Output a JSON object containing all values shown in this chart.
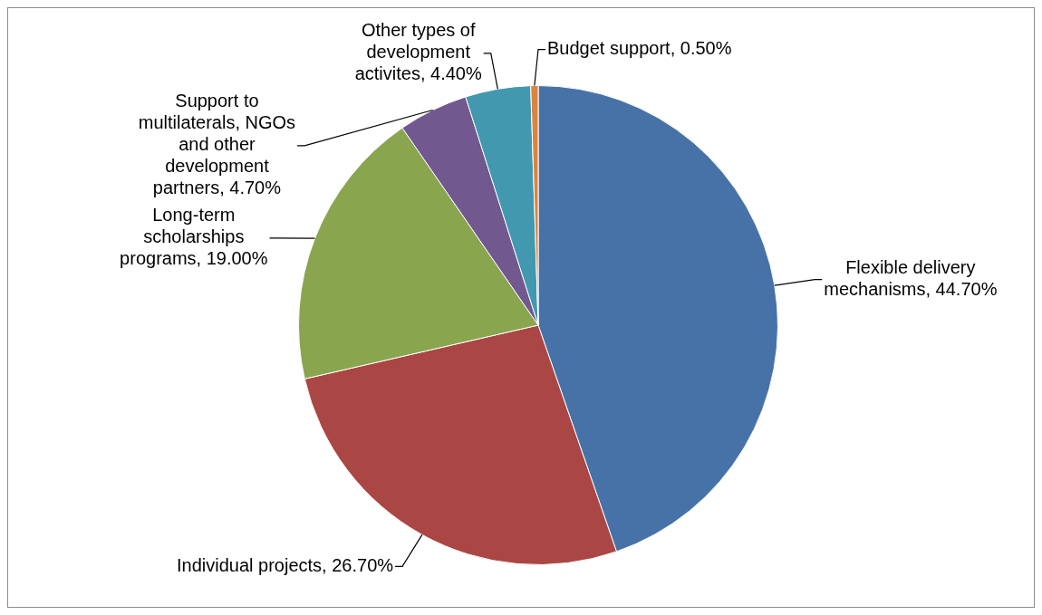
{
  "chart_data": {
    "type": "pie",
    "categories": [
      "Flexible delivery mechanisms",
      "Individual projects",
      "Long-term scholarships programs",
      "Support to multilaterals, NGOs and other development partners",
      "Other types of development activites",
      "Budget support"
    ],
    "values": [
      44.7,
      26.7,
      19.0,
      4.7,
      4.4,
      0.5
    ],
    "value_labels": [
      "44.70%",
      "26.70%",
      "19.00%",
      "4.70%",
      "4.40%",
      "0.50%"
    ],
    "colors": [
      "#4672a8",
      "#aa4644",
      "#89a54e",
      "#71588f",
      "#4198af",
      "#db843d"
    ],
    "legend": false
  }
}
